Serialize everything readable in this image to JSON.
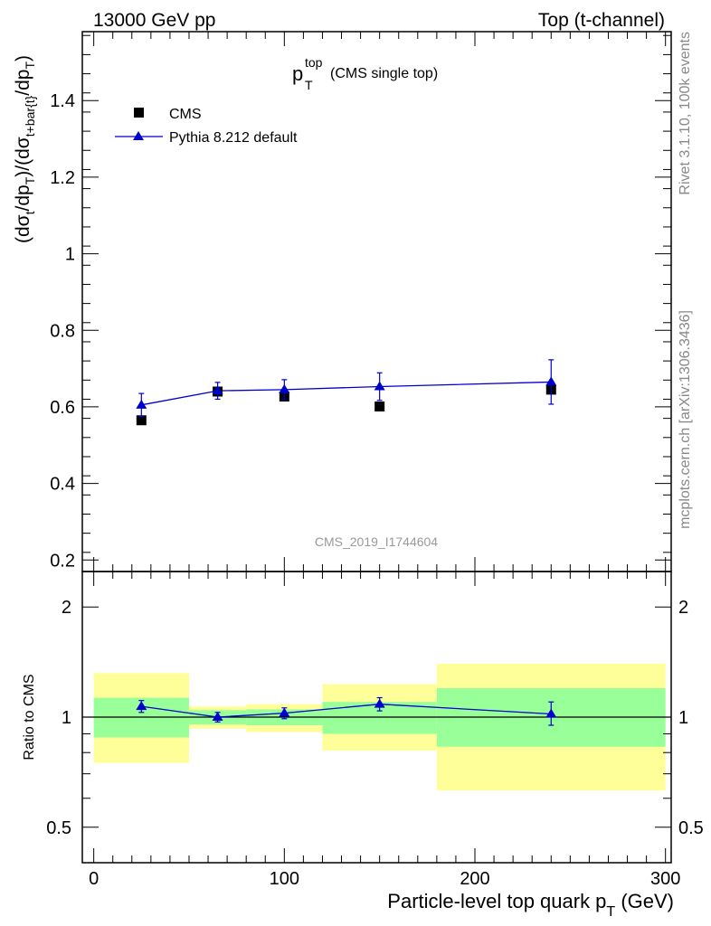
{
  "header": {
    "left": "13000 GeV pp",
    "right": "Top (t-channel)"
  },
  "side_labels": {
    "rivet": "Rivet 3.1.10,  100k events",
    "mcplots": "mcplots.cern.ch [arXiv:1306.3436]"
  },
  "chart_data": [
    {
      "type": "scatter",
      "panel": "main",
      "title_main": "p",
      "title_sup": "top",
      "title_sub": "T",
      "title_suffix": "(CMS single top)",
      "analysis_id": "CMS_2019_I1744604",
      "ylabel": "(dσ_t/dp_T)/(dσ_{t+bar{t}}/dp_T)",
      "ylabel_parts": [
        "(dσ",
        "t",
        "/dp",
        "T",
        ")/(dσ",
        "t+bar{t}",
        "/dp",
        "T",
        ")"
      ],
      "ylim": [
        0.17,
        1.58
      ],
      "xlim": [
        -6,
        303
      ],
      "y_ticks": [
        0.2,
        0.4,
        0.6,
        0.8,
        1.0,
        1.2,
        1.4
      ],
      "y_tick_labels": [
        "0.2",
        "0.4",
        "0.6",
        "0.8",
        "1",
        "1.2",
        "1.4"
      ],
      "legend": [
        "CMS",
        "Pythia 8.212 default"
      ],
      "series": [
        {
          "name": "CMS",
          "marker": "square",
          "color": "#000000",
          "x": [
            25,
            65,
            100,
            150,
            240
          ],
          "y": [
            0.565,
            0.64,
            0.627,
            0.601,
            0.645
          ],
          "err": [
            0.008,
            0.008,
            0.008,
            0.008,
            0.008
          ]
        },
        {
          "name": "Pythia 8.212 default",
          "marker": "triangle",
          "color": "#0000cc",
          "x": [
            25,
            65,
            100,
            150,
            240
          ],
          "y": [
            0.605,
            0.642,
            0.645,
            0.653,
            0.665
          ],
          "err": [
            0.03,
            0.022,
            0.026,
            0.036,
            0.058
          ]
        }
      ]
    },
    {
      "type": "scatter",
      "panel": "ratio",
      "ylabel": "Ratio to CMS",
      "xlabel_main": "Particle-level top quark p",
      "xlabel_sub": "T",
      "xlabel_suffix": " (GeV)",
      "ylim_log": [
        0.4,
        2.5
      ],
      "xlim": [
        -6,
        303
      ],
      "y_ticks": [
        0.5,
        1,
        2
      ],
      "y_tick_labels": [
        "0.5",
        "1",
        "2"
      ],
      "x_ticks": [
        0,
        100,
        200,
        300
      ],
      "x_tick_labels": [
        "0",
        "100",
        "200",
        "300"
      ],
      "bands": [
        {
          "x0": 0,
          "x1": 50,
          "yellow": [
            0.75,
            1.32
          ],
          "green": [
            0.88,
            1.13
          ]
        },
        {
          "x0": 50,
          "x1": 80,
          "yellow": [
            0.93,
            1.07
          ],
          "green": [
            0.955,
            1.045
          ]
        },
        {
          "x0": 80,
          "x1": 120,
          "yellow": [
            0.91,
            1.085
          ],
          "green": [
            0.95,
            1.05
          ]
        },
        {
          "x0": 120,
          "x1": 180,
          "yellow": [
            0.81,
            1.23
          ],
          "green": [
            0.9,
            1.1
          ]
        },
        {
          "x0": 180,
          "x1": 300,
          "yellow": [
            0.63,
            1.4
          ],
          "green": [
            0.83,
            1.2
          ]
        }
      ],
      "series": [
        {
          "name": "Pythia 8.212 default / CMS",
          "color": "#0000cc",
          "x": [
            25,
            65,
            100,
            150,
            240
          ],
          "y": [
            1.07,
            1.0,
            1.025,
            1.085,
            1.02
          ],
          "err_lo": [
            0.04,
            0.03,
            0.035,
            0.045,
            0.07
          ],
          "err_hi": [
            0.04,
            0.03,
            0.035,
            0.045,
            0.08
          ]
        }
      ],
      "band_colors": {
        "yellow": "#ffff99",
        "green": "#99ff99"
      }
    }
  ]
}
